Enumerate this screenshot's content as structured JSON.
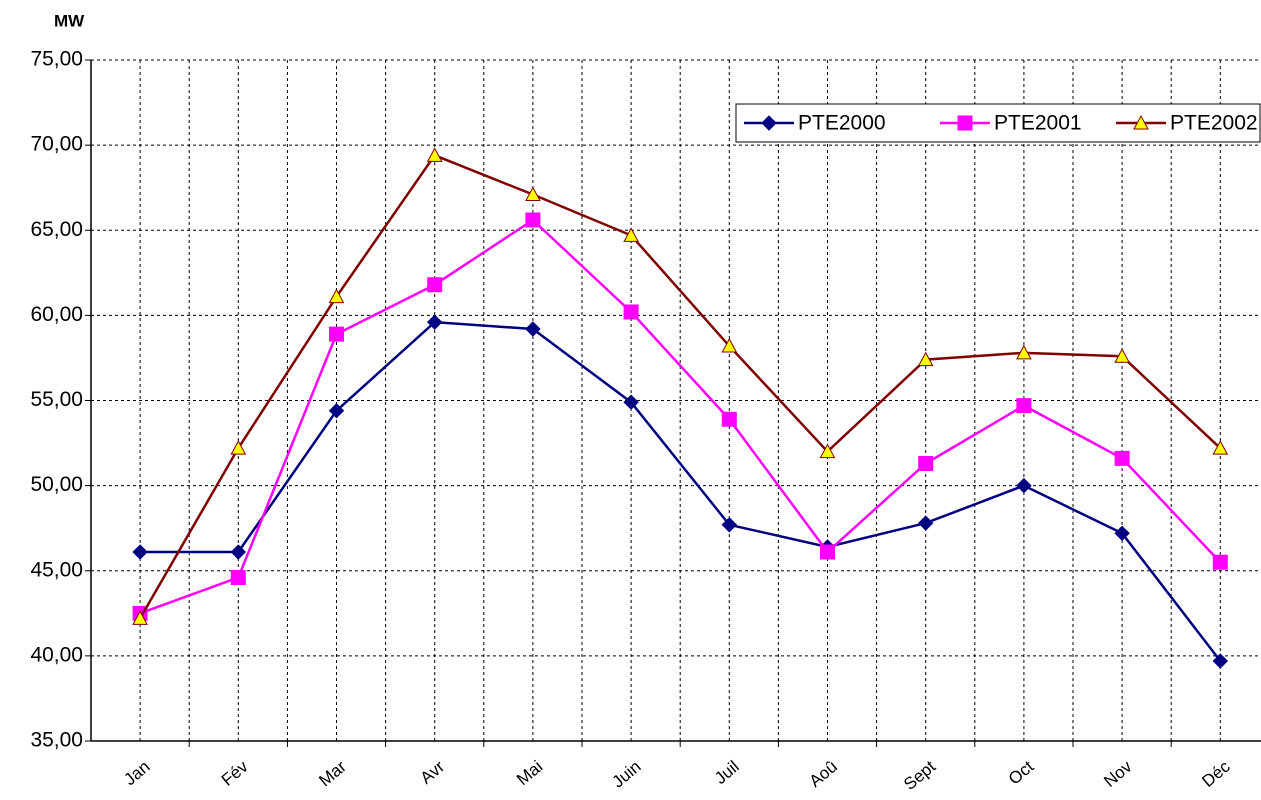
{
  "chart_data": {
    "type": "line",
    "y_label": "MW",
    "categories": [
      "Jan",
      "Fév",
      "Mar",
      "Avr",
      "Mai",
      "Juin",
      "Juil",
      "Aoû",
      "Sept",
      "Oct",
      "Nov",
      "Déc"
    ],
    "series": [
      {
        "name": "PTE2000",
        "color": "#000080",
        "marker": "diamond",
        "marker_fill": "#000080",
        "values": [
          46.1,
          46.1,
          54.4,
          59.6,
          59.2,
          54.9,
          47.7,
          46.4,
          47.8,
          50.0,
          47.2,
          39.7
        ]
      },
      {
        "name": "PTE2001",
        "color": "#ff00ff",
        "marker": "square",
        "marker_fill": "#ff00ff",
        "values": [
          42.5,
          44.6,
          58.9,
          61.8,
          65.6,
          60.2,
          53.9,
          46.1,
          51.3,
          54.7,
          51.6,
          45.5
        ]
      },
      {
        "name": "PTE2002",
        "color": "#800000",
        "marker": "triangle",
        "marker_fill": "#ffff00",
        "values": [
          42.2,
          52.2,
          61.1,
          69.4,
          67.1,
          64.7,
          58.2,
          52.0,
          57.4,
          57.8,
          57.6,
          52.2
        ]
      }
    ],
    "ylim": [
      35,
      75
    ],
    "yticks": [
      {
        "value": 35,
        "label": "35,00"
      },
      {
        "value": 40,
        "label": "40,00"
      },
      {
        "value": 45,
        "label": "45,00"
      },
      {
        "value": 50,
        "label": "50,00"
      },
      {
        "value": 55,
        "label": "55,00"
      },
      {
        "value": 60,
        "label": "60,00"
      },
      {
        "value": 65,
        "label": "65,00"
      },
      {
        "value": 70,
        "label": "70,00"
      },
      {
        "value": 75,
        "label": "75,00"
      }
    ],
    "grid": true,
    "legend": "top-right"
  }
}
